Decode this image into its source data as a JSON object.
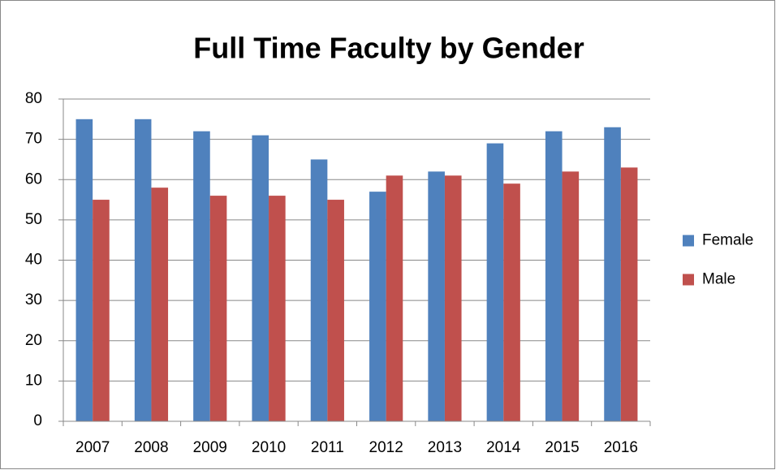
{
  "chart_data": {
    "type": "bar",
    "title": "Full Time Faculty by Gender",
    "categories": [
      "2007",
      "2008",
      "2009",
      "2010",
      "2011",
      "2012",
      "2013",
      "2014",
      "2015",
      "2016"
    ],
    "series": [
      {
        "name": "Female",
        "color": "#4f81bd",
        "values": [
          75,
          75,
          72,
          71,
          65,
          57,
          62,
          69,
          72,
          73
        ]
      },
      {
        "name": "Male",
        "color": "#c0504d",
        "values": [
          55,
          58,
          56,
          56,
          55,
          61,
          61,
          59,
          62,
          63
        ]
      }
    ],
    "ylim": [
      0,
      80
    ],
    "yticks": [
      0,
      10,
      20,
      30,
      40,
      50,
      60,
      70,
      80
    ],
    "grid": true,
    "legend": "right"
  }
}
